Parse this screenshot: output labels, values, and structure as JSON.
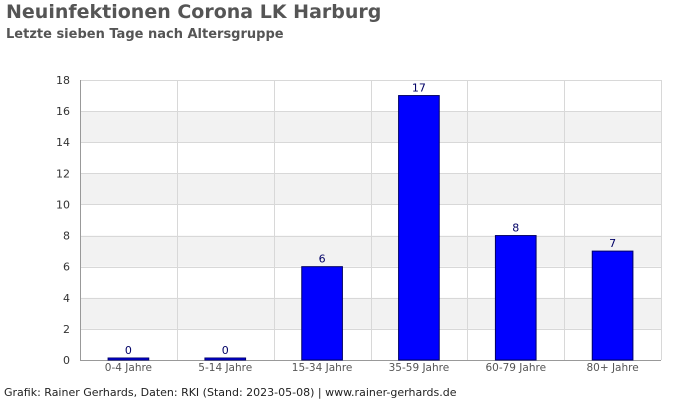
{
  "title": "Neuinfektionen Corona LK Harburg",
  "subtitle": "Letzte sieben Tage nach Altersgruppe",
  "footer": "Grafik: Rainer Gerhards, Daten: RKI (Stand: 2023-05-08) | www.rainer-gerhards.de",
  "colors": {
    "bar_fill": "#0000ff",
    "bar_stroke": "#000066",
    "band": "#f2f2f2",
    "grid": "#d8d8d8",
    "axis": "#999999"
  },
  "chart_data": {
    "type": "bar",
    "categories": [
      "0-4 Jahre",
      "5-14 Jahre",
      "15-34 Jahre",
      "35-59 Jahre",
      "60-79 Jahre",
      "80+ Jahre"
    ],
    "values": [
      0,
      0,
      6,
      17,
      8,
      7
    ],
    "ylim": [
      0,
      18
    ],
    "yticks": [
      0,
      2,
      4,
      6,
      8,
      10,
      12,
      14,
      16,
      18
    ],
    "grid": true,
    "data_labels": true
  }
}
